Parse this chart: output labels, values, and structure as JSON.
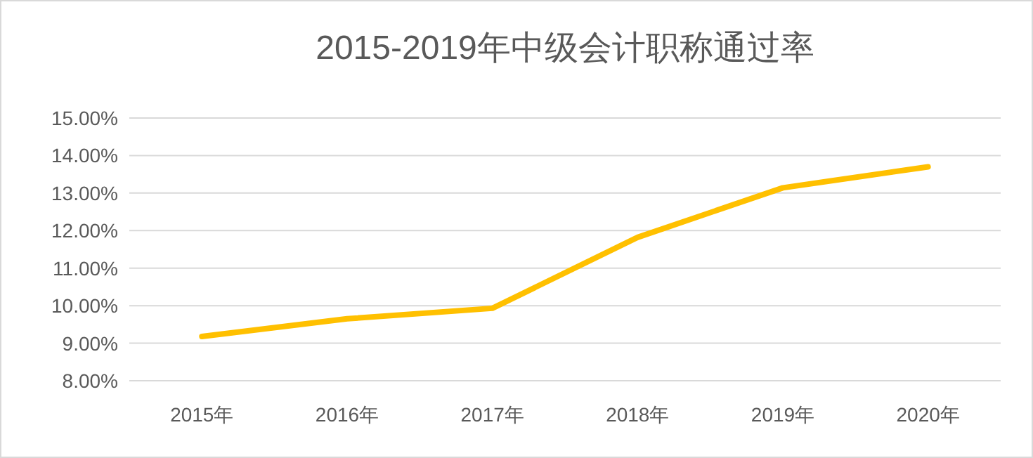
{
  "chart_data": {
    "type": "line",
    "title": "2015-2019年中级会计职称通过率",
    "categories": [
      "2015年",
      "2016年",
      "2017年",
      "2018年",
      "2019年",
      "2020年"
    ],
    "series": [
      {
        "color": "#ffc000",
        "values": [
          9.18,
          9.65,
          9.93,
          11.82,
          13.14,
          13.7
        ]
      }
    ],
    "ylim": [
      8,
      15
    ],
    "yticks": [
      {
        "value": 8,
        "label": "8.00%"
      },
      {
        "value": 9,
        "label": "9.00%"
      },
      {
        "value": 10,
        "label": "10.00%"
      },
      {
        "value": 11,
        "label": "11.00%"
      },
      {
        "value": 12,
        "label": "12.00%"
      },
      {
        "value": 13,
        "label": "13.00%"
      },
      {
        "value": 14,
        "label": "14.00%"
      },
      {
        "value": 15,
        "label": "15.00%"
      }
    ],
    "grid": "y",
    "marker": "none",
    "line_style": "solid"
  }
}
